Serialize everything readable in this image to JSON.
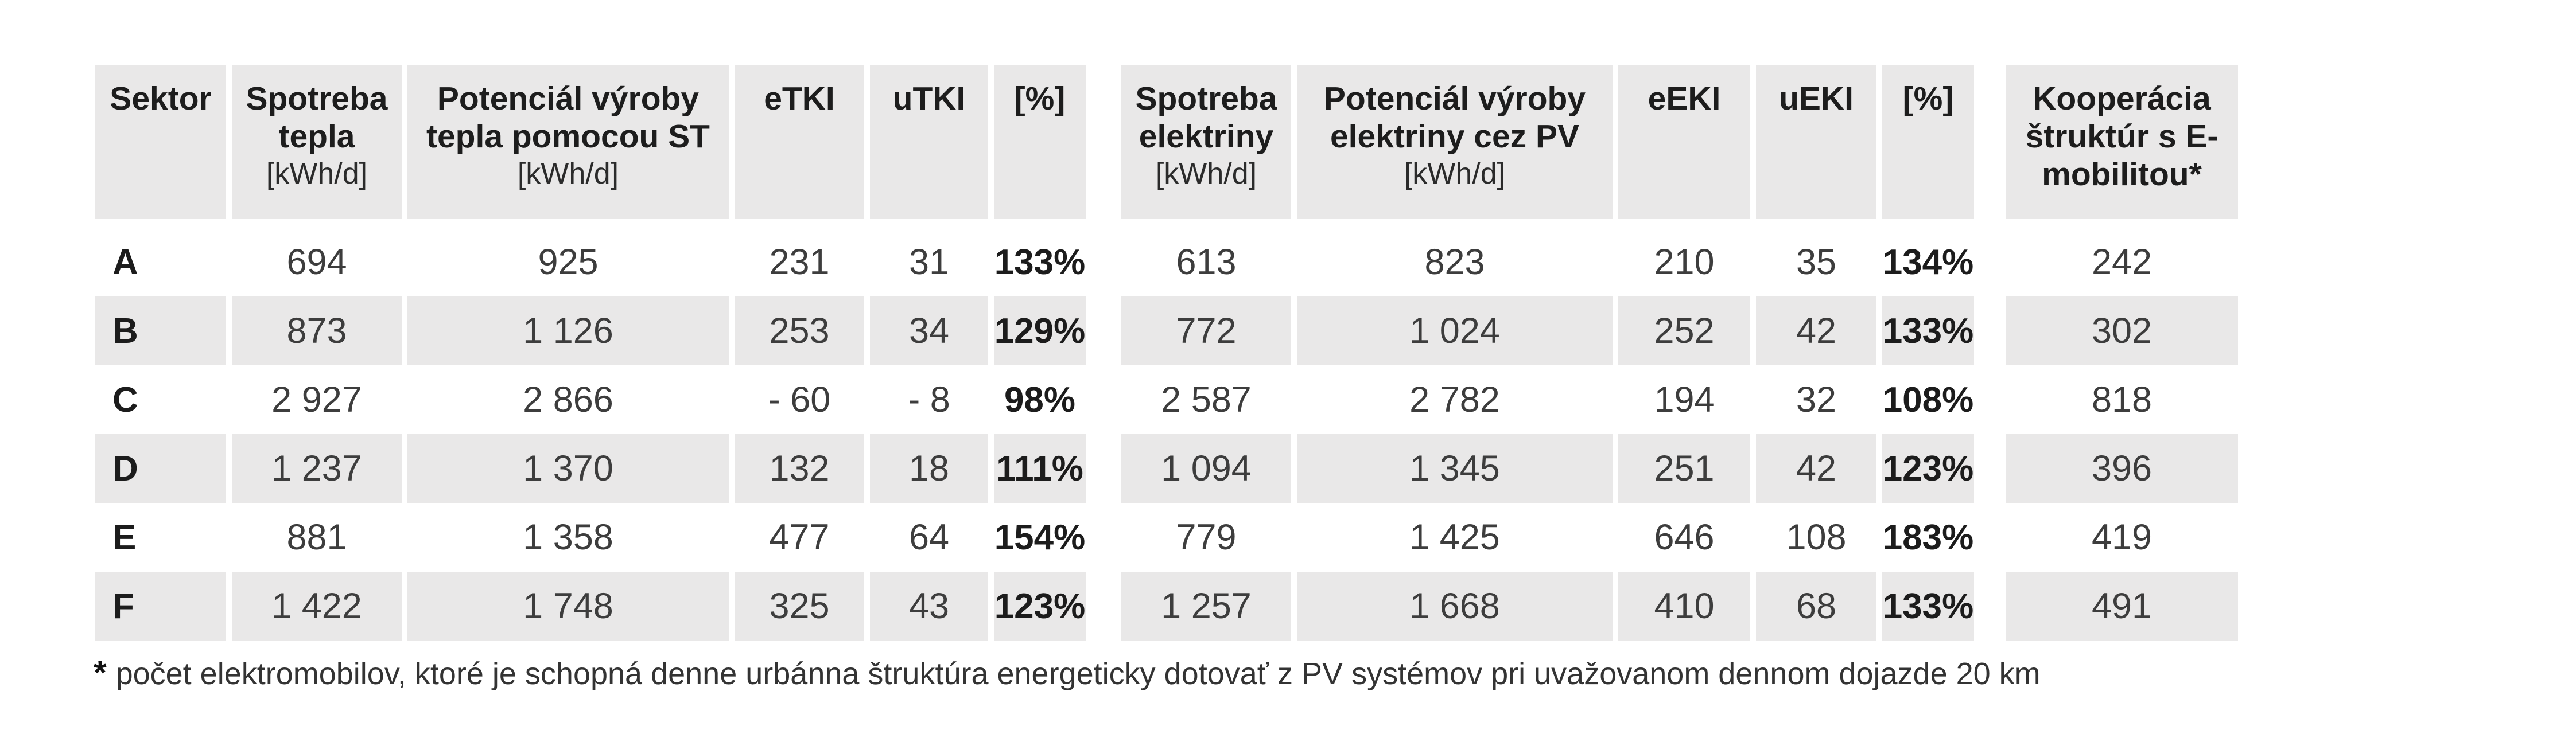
{
  "colors": {
    "cell_shade": "#e9e8e8",
    "text_dark": "#1d1d1d",
    "text_number": "#3d3d3d",
    "background": "#ffffff"
  },
  "table": {
    "headers": [
      {
        "label": "Sektor",
        "unit": ""
      },
      {
        "label": "Spotreba tepla",
        "unit": "[kWh/d]"
      },
      {
        "label": "Potenciál výroby tepla pomocou ST",
        "unit": "[kWh/d]"
      },
      {
        "label": "eTKI",
        "unit": ""
      },
      {
        "label": "uTKI",
        "unit": ""
      },
      {
        "label": "[%]",
        "unit": ""
      },
      {
        "label": "Spotreba elektriny",
        "unit": "[kWh/d]"
      },
      {
        "label": "Potenciál výroby elektriny cez PV",
        "unit": "[kWh/d]"
      },
      {
        "label": "eEKI",
        "unit": ""
      },
      {
        "label": "uEKI",
        "unit": ""
      },
      {
        "label": "[%]",
        "unit": ""
      },
      {
        "label": "Kooperácia štruktúr s E-mobilitou*",
        "unit": ""
      }
    ],
    "rows": [
      {
        "sektor": "A",
        "spotreba_tepla": "694",
        "potencial_st": "925",
        "etki": "231",
        "utki": "31",
        "tki_pct": "133%",
        "spotreba_elektriny": "613",
        "potencial_pv": "823",
        "eeki": "210",
        "ueki": "35",
        "eki_pct": "134%",
        "kooperacia": "242"
      },
      {
        "sektor": "B",
        "spotreba_tepla": "873",
        "potencial_st": "1 126",
        "etki": "253",
        "utki": "34",
        "tki_pct": "129%",
        "spotreba_elektriny": "772",
        "potencial_pv": "1 024",
        "eeki": "252",
        "ueki": "42",
        "eki_pct": "133%",
        "kooperacia": "302"
      },
      {
        "sektor": "C",
        "spotreba_tepla": "2 927",
        "potencial_st": "2 866",
        "etki": "- 60",
        "utki": "- 8",
        "tki_pct": "98%",
        "spotreba_elektriny": "2 587",
        "potencial_pv": "2 782",
        "eeki": "194",
        "ueki": "32",
        "eki_pct": "108%",
        "kooperacia": "818"
      },
      {
        "sektor": "D",
        "spotreba_tepla": "1 237",
        "potencial_st": "1 370",
        "etki": "132",
        "utki": "18",
        "tki_pct": "111%",
        "spotreba_elektriny": "1 094",
        "potencial_pv": "1 345",
        "eeki": "251",
        "ueki": "42",
        "eki_pct": "123%",
        "kooperacia": "396"
      },
      {
        "sektor": "E",
        "spotreba_tepla": "881",
        "potencial_st": "1 358",
        "etki": "477",
        "utki": "64",
        "tki_pct": "154%",
        "spotreba_elektriny": "779",
        "potencial_pv": "1 425",
        "eeki": "646",
        "ueki": "108",
        "eki_pct": "183%",
        "kooperacia": "419"
      },
      {
        "sektor": "F",
        "spotreba_tepla": "1 422",
        "potencial_st": "1 748",
        "etki": "325",
        "utki": "43",
        "tki_pct": "123%",
        "spotreba_elektriny": "1 257",
        "potencial_pv": "1 668",
        "eeki": "410",
        "ueki": "68",
        "eki_pct": "133%",
        "kooperacia": "491"
      }
    ]
  },
  "footnote": {
    "marker": "*",
    "text": "počet elektromobilov, ktoré je schopná denne urbánna štruktúra energeticky dotovať z PV systémov pri uvažovanom dennom dojazde 20 km"
  }
}
